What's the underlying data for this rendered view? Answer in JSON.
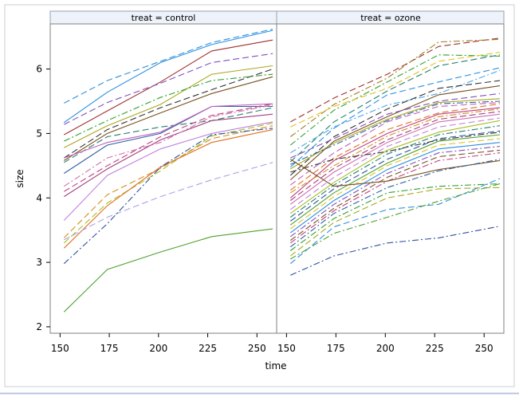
{
  "chart_data": {
    "type": "line",
    "title": "",
    "xlabel": "time",
    "ylabel": "size",
    "xlim": [
      145,
      260
    ],
    "ylim": [
      1.9,
      6.7
    ],
    "xticks": [
      150,
      175,
      200,
      225,
      250
    ],
    "yticks": [
      2,
      3,
      4,
      5,
      6
    ],
    "x": [
      152,
      174,
      201,
      227,
      258
    ],
    "grid": false,
    "legend": "none",
    "panels": [
      {
        "label": "treat = control",
        "series": [
          {
            "values": [
              5.47,
              5.82,
              6.12,
              6.41,
              6.62
            ],
            "color": "#2a90e0",
            "dash": "dash"
          },
          {
            "values": [
              5.17,
              5.64,
              6.1,
              6.38,
              6.6
            ],
            "color": "#2a90e0",
            "dash": "solid"
          },
          {
            "values": [
              4.98,
              5.35,
              5.8,
              6.28,
              6.45
            ],
            "color": "#a03030",
            "dash": "solid"
          },
          {
            "values": [
              5.14,
              5.48,
              5.78,
              6.1,
              6.24
            ],
            "color": "#8050c0",
            "dash": "dash"
          },
          {
            "values": [
              4.78,
              5.12,
              5.45,
              5.92,
              6.05
            ],
            "color": "#a8a820",
            "dash": "solid"
          },
          {
            "values": [
              4.62,
              5.06,
              5.4,
              5.68,
              6.0
            ],
            "color": "#333333",
            "dash": "dash"
          },
          {
            "values": [
              4.58,
              5.0,
              5.32,
              5.62,
              5.88
            ],
            "color": "#7a5020",
            "dash": "solid"
          },
          {
            "values": [
              4.88,
              5.2,
              5.56,
              5.82,
              5.92
            ],
            "color": "#30a030",
            "dash": "dashdot"
          },
          {
            "values": [
              4.38,
              4.82,
              5.0,
              5.42,
              5.42
            ],
            "color": "#3060a0",
            "dash": "solid"
          },
          {
            "values": [
              4.55,
              4.95,
              5.1,
              5.2,
              5.4
            ],
            "color": "#208070",
            "dash": "dash"
          },
          {
            "values": [
              4.62,
              4.86,
              5.02,
              5.42,
              5.46
            ],
            "color": "#c060c0",
            "dash": "solid"
          },
          {
            "values": [
              4.1,
              4.5,
              4.95,
              5.28,
              5.46
            ],
            "color": "#c04080",
            "dash": "dash"
          },
          {
            "values": [
              4.02,
              4.45,
              4.9,
              5.2,
              5.3
            ],
            "color": "#a04080",
            "dash": "solid"
          },
          {
            "values": [
              4.18,
              4.62,
              4.86,
              5.26,
              5.44
            ],
            "color": "#d070b0",
            "dash": "dashdot"
          },
          {
            "values": [
              3.65,
              4.35,
              4.76,
              5.0,
              5.18
            ],
            "color": "#c080e0",
            "dash": "solid"
          },
          {
            "values": [
              3.3,
              3.92,
              4.42,
              4.96,
              5.16
            ],
            "color": "#a8c020",
            "dash": "dash"
          },
          {
            "values": [
              3.38,
              4.05,
              4.46,
              4.92,
              5.12
            ],
            "color": "#d09020",
            "dash": "dash"
          },
          {
            "values": [
              3.22,
              3.88,
              4.48,
              4.86,
              5.06
            ],
            "color": "#e07020",
            "dash": "solid"
          },
          {
            "values": [
              3.35,
              3.7,
              4.02,
              4.28,
              4.55
            ],
            "color": "#b0a0e8",
            "dash": "dash"
          },
          {
            "values": [
              2.98,
              3.6,
              4.48,
              4.98,
              5.08
            ],
            "color": "#3050a0",
            "dash": "dashdot"
          },
          {
            "values": [
              2.23,
              2.89,
              3.16,
              3.4,
              3.52
            ],
            "color": "#50a030",
            "dash": "solid"
          }
        ]
      },
      {
        "label": "treat = ozone",
        "series": [
          {
            "values": [
              5.18,
              5.55,
              5.92,
              6.35,
              6.48
            ],
            "color": "#a03030",
            "dash": "dash"
          },
          {
            "values": [
              4.95,
              5.45,
              5.86,
              6.42,
              6.46
            ],
            "color": "#a08020",
            "dash": "dashdot"
          },
          {
            "values": [
              4.82,
              5.36,
              5.8,
              6.22,
              6.2
            ],
            "color": "#30a030",
            "dash": "dashdot"
          },
          {
            "values": [
              5.1,
              5.42,
              5.7,
              6.12,
              6.26
            ],
            "color": "#e0c020",
            "dash": "dash"
          },
          {
            "values": [
              4.56,
              5.18,
              5.66,
              6.05,
              6.22
            ],
            "color": "#208070",
            "dash": "dash"
          },
          {
            "values": [
              4.48,
              5.08,
              5.6,
              5.8,
              6.02
            ],
            "color": "#2a90e0",
            "dash": "dash"
          },
          {
            "values": [
              4.7,
              5.1,
              5.44,
              5.62,
              5.98
            ],
            "color": "#50a8e8",
            "dash": "dashdot"
          },
          {
            "values": [
              4.35,
              4.95,
              5.38,
              5.7,
              5.82
            ],
            "color": "#333333",
            "dash": "dash"
          },
          {
            "values": [
              4.28,
              4.88,
              5.26,
              5.6,
              5.74
            ],
            "color": "#7a5020",
            "dash": "solid"
          },
          {
            "values": [
              4.62,
              4.92,
              5.3,
              5.5,
              5.62
            ],
            "color": "#8050c0",
            "dash": "dash"
          },
          {
            "values": [
              4.45,
              4.85,
              5.22,
              5.48,
              5.54
            ],
            "color": "#a8a820",
            "dash": "solid"
          },
          {
            "values": [
              4.52,
              4.82,
              5.2,
              5.46,
              5.5
            ],
            "color": "#3060a0",
            "dash": "dashdot"
          },
          {
            "values": [
              4.2,
              4.7,
              5.18,
              5.42,
              5.48
            ],
            "color": "#c060c0",
            "dash": "dash"
          },
          {
            "values": [
              4.12,
              4.62,
              5.06,
              5.32,
              5.46
            ],
            "color": "#e07020",
            "dash": "dash"
          },
          {
            "values": [
              4.0,
              4.58,
              5.0,
              5.3,
              5.4
            ],
            "color": "#c04080",
            "dash": "solid"
          },
          {
            "values": [
              4.08,
              4.5,
              4.96,
              5.26,
              5.38
            ],
            "color": "#d09020",
            "dash": "dashdot"
          },
          {
            "values": [
              3.96,
              4.46,
              4.9,
              5.22,
              5.34
            ],
            "color": "#a04080",
            "dash": "dash"
          },
          {
            "values": [
              3.9,
              4.4,
              4.86,
              5.18,
              5.3
            ],
            "color": "#d070b0",
            "dash": "solid"
          },
          {
            "values": [
              3.82,
              4.32,
              4.8,
              5.1,
              5.24
            ],
            "color": "#c080e0",
            "dash": "dash"
          },
          {
            "values": [
              3.76,
              4.24,
              4.74,
              5.02,
              5.2
            ],
            "color": "#a8c020",
            "dash": "solid"
          },
          {
            "values": [
              3.7,
              4.2,
              4.68,
              4.98,
              5.12
            ],
            "color": "#208070",
            "dash": "dashdot"
          },
          {
            "values": [
              3.64,
              4.14,
              4.6,
              4.92,
              5.04
            ],
            "color": "#3050a0",
            "dash": "dash"
          },
          {
            "values": [
              3.58,
              4.08,
              4.54,
              4.88,
              4.98
            ],
            "color": "#50a030",
            "dash": "solid"
          },
          {
            "values": [
              3.52,
              4.02,
              4.5,
              4.82,
              4.92
            ],
            "color": "#e0c020",
            "dash": "dash"
          },
          {
            "values": [
              3.46,
              3.96,
              4.44,
              4.76,
              4.86
            ],
            "color": "#2a90e0",
            "dash": "solid"
          },
          {
            "values": [
              3.4,
              3.9,
              4.38,
              4.7,
              4.8
            ],
            "color": "#8050c0",
            "dash": "dashdot"
          },
          {
            "values": [
              3.34,
              3.84,
              4.32,
              4.64,
              4.74
            ],
            "color": "#7a5020",
            "dash": "dash"
          },
          {
            "values": [
              3.3,
              3.8,
              4.26,
              4.58,
              4.7
            ],
            "color": "#c04080",
            "dash": "dashdot"
          },
          {
            "values": [
              4.4,
              4.6,
              4.72,
              4.9,
              5.02
            ],
            "color": "#333333",
            "dash": "dashdot"
          },
          {
            "values": [
              4.6,
              4.18,
              4.26,
              4.44,
              4.58
            ],
            "color": "#7a5020",
            "dash": "solid"
          },
          {
            "values": [
              3.24,
              3.76,
              4.16,
              4.42,
              4.6
            ],
            "color": "#3060a0",
            "dash": "dashdot"
          },
          {
            "values": [
              3.18,
              3.68,
              4.08,
              4.18,
              4.22
            ],
            "color": "#30a030",
            "dash": "dashdot"
          },
          {
            "values": [
              3.1,
              3.62,
              4.0,
              4.14,
              4.16
            ],
            "color": "#a8a820",
            "dash": "dash"
          },
          {
            "values": [
              2.98,
              3.55,
              3.82,
              3.9,
              4.3
            ],
            "color": "#2a90e0",
            "dash": "dash"
          },
          {
            "values": [
              3.05,
              3.45,
              3.7,
              3.95,
              4.22
            ],
            "color": "#50a030",
            "dash": "dashdot"
          },
          {
            "values": [
              2.8,
              3.1,
              3.3,
              3.38,
              3.56
            ],
            "color": "#3050a0",
            "dash": "dashdot"
          }
        ]
      }
    ]
  }
}
